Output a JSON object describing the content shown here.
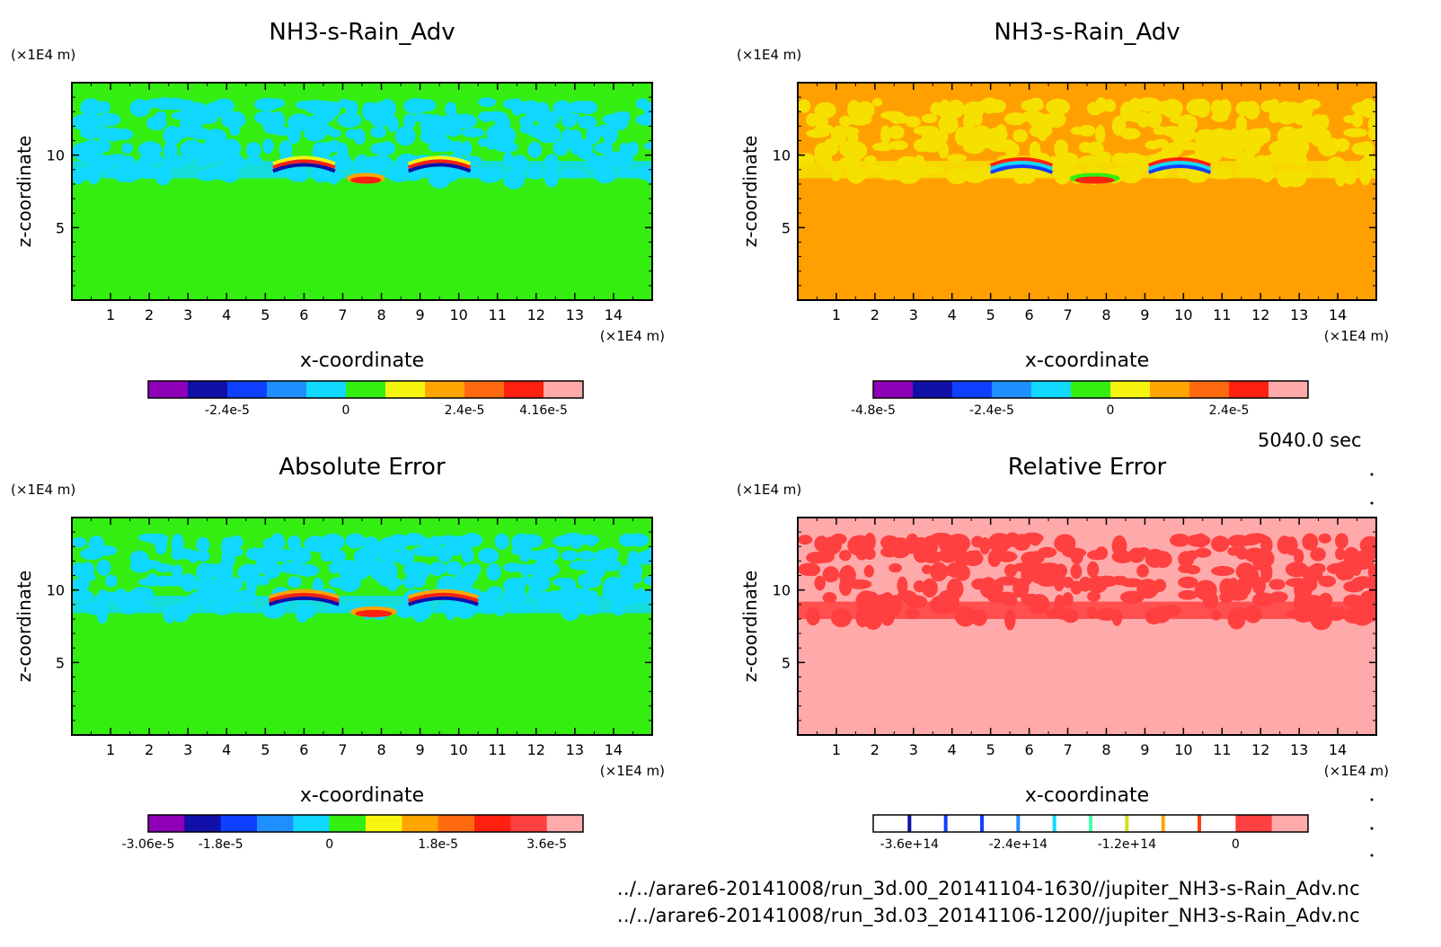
{
  "figure": {
    "time_label": "5040.0 sec",
    "file_paths": [
      "../../arare6-20141008/run_3d.00_20141104-1630//jupiter_NH3-s-Rain_Adv.nc",
      "../../arare6-20141008/run_3d.03_20141106-1200//jupiter_NH3-s-Rain_Adv.nc"
    ]
  },
  "chart_data": [
    {
      "type": "heatmap",
      "title": "NH3-s-Rain_Adv",
      "xlabel": "x-coordinate",
      "ylabel": "z-coordinate",
      "x_unit": "(×1E4 m)",
      "y_unit": "(×1E4 m)",
      "xlim": [
        0,
        15
      ],
      "ylim": [
        0,
        15
      ],
      "x_ticks": [
        1,
        2,
        3,
        4,
        5,
        6,
        7,
        8,
        9,
        10,
        11,
        12,
        13,
        14
      ],
      "y_ticks": [
        5,
        10
      ],
      "background_color": "#33ee10",
      "colorbar": {
        "colors": [
          "#8e00b8",
          "#1010a8",
          "#1040ff",
          "#1f8fff",
          "#10d8ff",
          "#33ee10",
          "#f5f510",
          "#ffa500",
          "#ff6a10",
          "#ff2010",
          "#ffaaaa"
        ],
        "tick_labels": [
          "-2.4e-5",
          "0",
          "2.4e-5",
          "4.16e-5"
        ],
        "tick_positions": [
          2,
          5,
          8,
          10
        ]
      },
      "features": [
        {
          "kind": "band",
          "color": "#10d8ff",
          "z_range": [
            8.4,
            14
          ]
        },
        {
          "kind": "arc",
          "x": 6,
          "z": 9.4,
          "width": 1.6,
          "colors": [
            "#f5f510",
            "#ff2010",
            "#1010a8"
          ]
        },
        {
          "kind": "arc",
          "x": 9.5,
          "z": 9.4,
          "width": 1.6,
          "colors": [
            "#f5f510",
            "#ff2010",
            "#1010a8"
          ]
        },
        {
          "kind": "blob",
          "x": 7.6,
          "z": 8.4,
          "width": 1.0,
          "colors": [
            "#ffa500",
            "#ff2010"
          ]
        }
      ]
    },
    {
      "type": "heatmap",
      "title": "NH3-s-Rain_Adv",
      "xlabel": "x-coordinate",
      "ylabel": "z-coordinate",
      "x_unit": "(×1E4 m)",
      "y_unit": "(×1E4 m)",
      "xlim": [
        0,
        15
      ],
      "ylim": [
        0,
        15
      ],
      "x_ticks": [
        1,
        2,
        3,
        4,
        5,
        6,
        7,
        8,
        9,
        10,
        11,
        12,
        13,
        14
      ],
      "y_ticks": [
        5,
        10
      ],
      "background_color": "#ffa000",
      "colorbar": {
        "colors": [
          "#8e00b8",
          "#1010a8",
          "#1040ff",
          "#1f8fff",
          "#10d8ff",
          "#33ee10",
          "#f5f510",
          "#ffa500",
          "#ff6a10",
          "#ff2010",
          "#ffaaaa"
        ],
        "tick_labels": [
          "-4.8e-5",
          "-2.4e-5",
          "0",
          "2.4e-5"
        ],
        "tick_positions": [
          0,
          3,
          6,
          9
        ]
      },
      "features": [
        {
          "kind": "band",
          "color": "#f5e000",
          "z_range": [
            8.4,
            14
          ]
        },
        {
          "kind": "arc",
          "x": 5.8,
          "z": 9.3,
          "width": 1.6,
          "colors": [
            "#ff2010",
            "#10d8ff",
            "#1040ff"
          ]
        },
        {
          "kind": "arc",
          "x": 9.9,
          "z": 9.3,
          "width": 1.6,
          "colors": [
            "#ff2010",
            "#10d8ff",
            "#1040ff"
          ]
        },
        {
          "kind": "blob",
          "x": 7.7,
          "z": 8.4,
          "width": 1.3,
          "colors": [
            "#33ee10",
            "#ff2010"
          ]
        }
      ]
    },
    {
      "type": "heatmap",
      "title": "Absolute Error",
      "xlabel": "x-coordinate",
      "ylabel": "z-coordinate",
      "x_unit": "(×1E4 m)",
      "y_unit": "(×1E4 m)",
      "xlim": [
        0,
        15
      ],
      "ylim": [
        0,
        15
      ],
      "x_ticks": [
        1,
        2,
        3,
        4,
        5,
        6,
        7,
        8,
        9,
        10,
        11,
        12,
        13,
        14
      ],
      "y_ticks": [
        5,
        10
      ],
      "background_color": "#33ee10",
      "colorbar": {
        "colors": [
          "#8e00b8",
          "#1010a8",
          "#1040ff",
          "#1f8fff",
          "#10d8ff",
          "#33ee10",
          "#f5f510",
          "#ffa500",
          "#ff6a10",
          "#ff2010",
          "#ff4040",
          "#ffaaaa"
        ],
        "tick_labels": [
          "-3.06e-5",
          "-1.8e-5",
          "0",
          "1.8e-5",
          "3.6e-5"
        ],
        "tick_positions": [
          0,
          2,
          5,
          8,
          11
        ]
      },
      "features": [
        {
          "kind": "band",
          "color": "#10d8ff",
          "z_range": [
            8.4,
            14
          ]
        },
        {
          "kind": "arc",
          "x": 6,
          "z": 9.5,
          "width": 1.8,
          "colors": [
            "#ffa500",
            "#ff2010",
            "#1010a8"
          ]
        },
        {
          "kind": "arc",
          "x": 9.6,
          "z": 9.5,
          "width": 1.8,
          "colors": [
            "#ffa500",
            "#ff2010",
            "#1010a8"
          ]
        },
        {
          "kind": "blob",
          "x": 7.8,
          "z": 8.5,
          "width": 1.2,
          "colors": [
            "#ffa500",
            "#ff2010"
          ]
        }
      ]
    },
    {
      "type": "heatmap",
      "title": "Relative Error",
      "xlabel": "x-coordinate",
      "ylabel": "z-coordinate",
      "x_unit": "(×1E4 m)",
      "y_unit": "(×1E4 m)",
      "xlim": [
        0,
        15
      ],
      "ylim": [
        0,
        15
      ],
      "x_ticks": [
        1,
        2,
        3,
        4,
        5,
        6,
        7,
        8,
        9,
        10,
        11,
        12,
        13,
        14
      ],
      "y_ticks": [
        5,
        10
      ],
      "background_color": "#ffaaaa",
      "colorbar": {
        "colors": [
          "#ffffff",
          "#ffffff",
          "#ffffff",
          "#ffffff",
          "#ffffff",
          "#ffffff",
          "#ffffff",
          "#ffffff",
          "#ffffff",
          "#ffffff",
          "#ff4040",
          "#ffaaaa"
        ],
        "thin_marks": [
          "#1010a8",
          "#1040ff",
          "#1040ff",
          "#1f8fff",
          "#10d8ff",
          "#40ffb0",
          "#d0e020",
          "#ffa500",
          "#ff4010"
        ],
        "tick_labels": [
          "-3.6e+14",
          "-2.4e+14",
          "-1.2e+14",
          "0"
        ],
        "tick_positions": [
          1,
          4,
          7,
          10
        ]
      },
      "features": [
        {
          "kind": "band",
          "color": "#ff4040",
          "z_range": [
            8.0,
            14
          ]
        }
      ]
    }
  ]
}
